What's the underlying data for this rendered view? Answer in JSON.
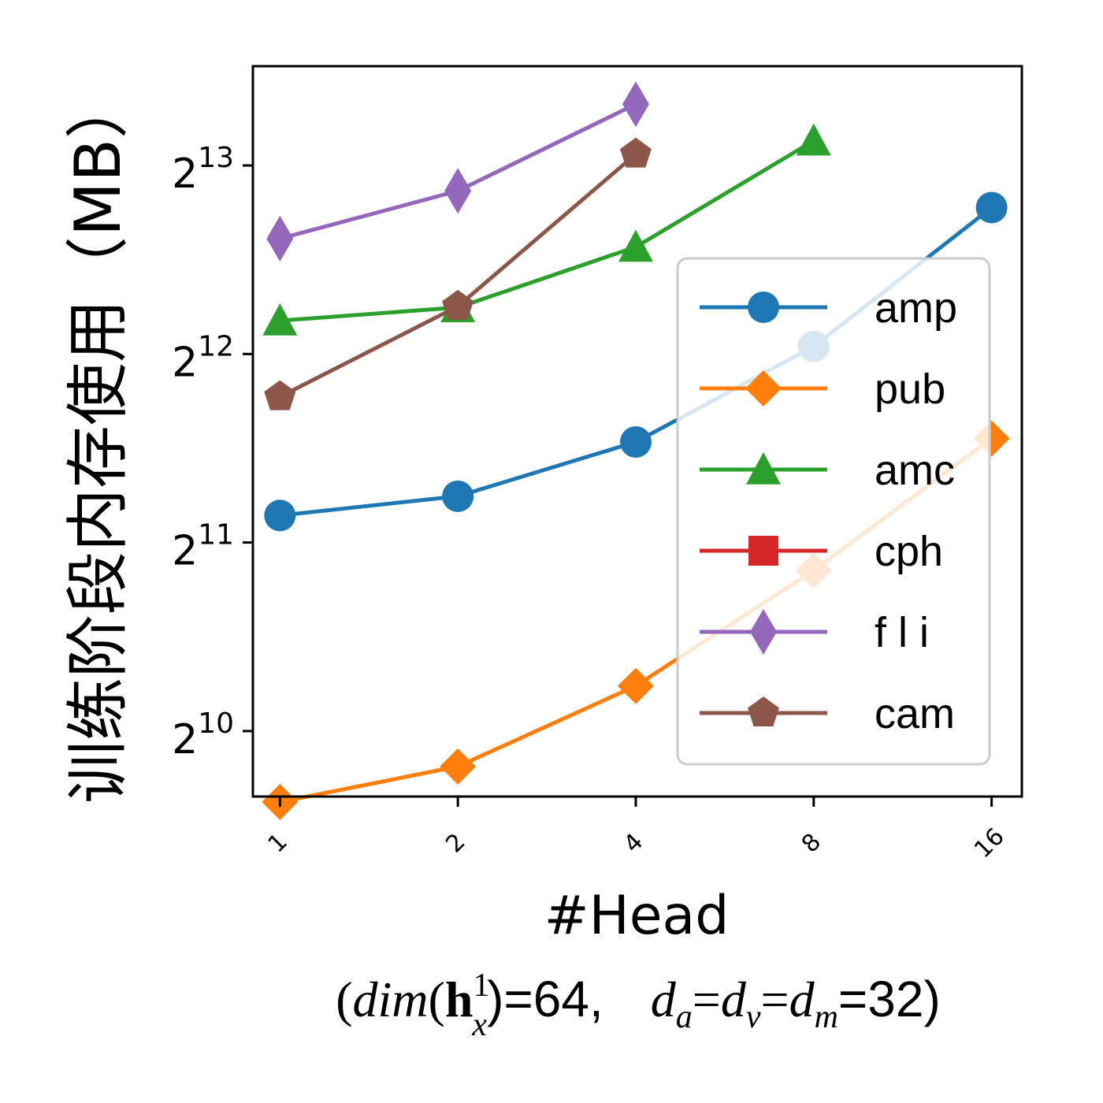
{
  "chart_data": {
    "type": "line",
    "xlabel": "#Head",
    "ylabel": "训练阶段内存使用（MB）",
    "caption": {
      "open": "(",
      "dim": "dim",
      "paren_open": "(",
      "h": "h",
      "h_sup": "1",
      "h_sub": "x",
      "after_h": ")=64,",
      "d1": "d",
      "d1_sub": "a",
      "eq1": "=",
      "d2": "d",
      "d2_sub": "v",
      "eq2": "=",
      "d3": "d",
      "d3_sub": "m",
      "tail": "=32)"
    },
    "x_scale": "log2",
    "y_scale": "log2",
    "x_ticks": [
      1,
      2,
      4,
      8,
      16
    ],
    "x_tick_labels": [
      "1",
      "2",
      "4",
      "8",
      "16"
    ],
    "y_ticks": [
      10,
      11,
      12,
      13
    ],
    "y_tick_base": "2",
    "y_tick_exponents": [
      "10",
      "11",
      "12",
      "13"
    ],
    "xlim": [
      0.9,
      18.0
    ],
    "ylim": [
      805,
      11800
    ],
    "grid": false,
    "legend_position": "right",
    "series": [
      {
        "name": "amp",
        "color": "#1f77b4",
        "marker": "circle",
        "x": [
          1,
          2,
          4,
          8,
          16
        ],
        "y": [
          2262,
          2428,
          2964,
          4210,
          7017
        ]
      },
      {
        "name": "pub",
        "color": "#ff7f0e",
        "marker": "diamond",
        "x": [
          1,
          2,
          4,
          8,
          16
        ],
        "y": [
          789,
          899,
          1209,
          1848,
          3002
        ]
      },
      {
        "name": "amc",
        "color": "#2ca02c",
        "marker": "triangle",
        "x": [
          1,
          2,
          4,
          8
        ],
        "y": [
          4630,
          4860,
          6070,
          8970
        ]
      },
      {
        "name": "cph",
        "color": "#d62728",
        "marker": "square",
        "x": [],
        "y": []
      },
      {
        "name": "fli",
        "color": "#9467bd",
        "marker": "thin-diamond",
        "x": [
          1,
          2,
          4
        ],
        "y": [
          6260,
          7460,
          10260
        ]
      },
      {
        "name": "cam",
        "color": "#8c564b",
        "marker": "pentagon",
        "x": [
          1,
          2,
          4
        ],
        "y": [
          3500,
          4880,
          8540
        ]
      }
    ],
    "legend_labels": [
      "amp",
      "pub",
      "amc",
      "cph",
      "f l i",
      "cam"
    ]
  }
}
